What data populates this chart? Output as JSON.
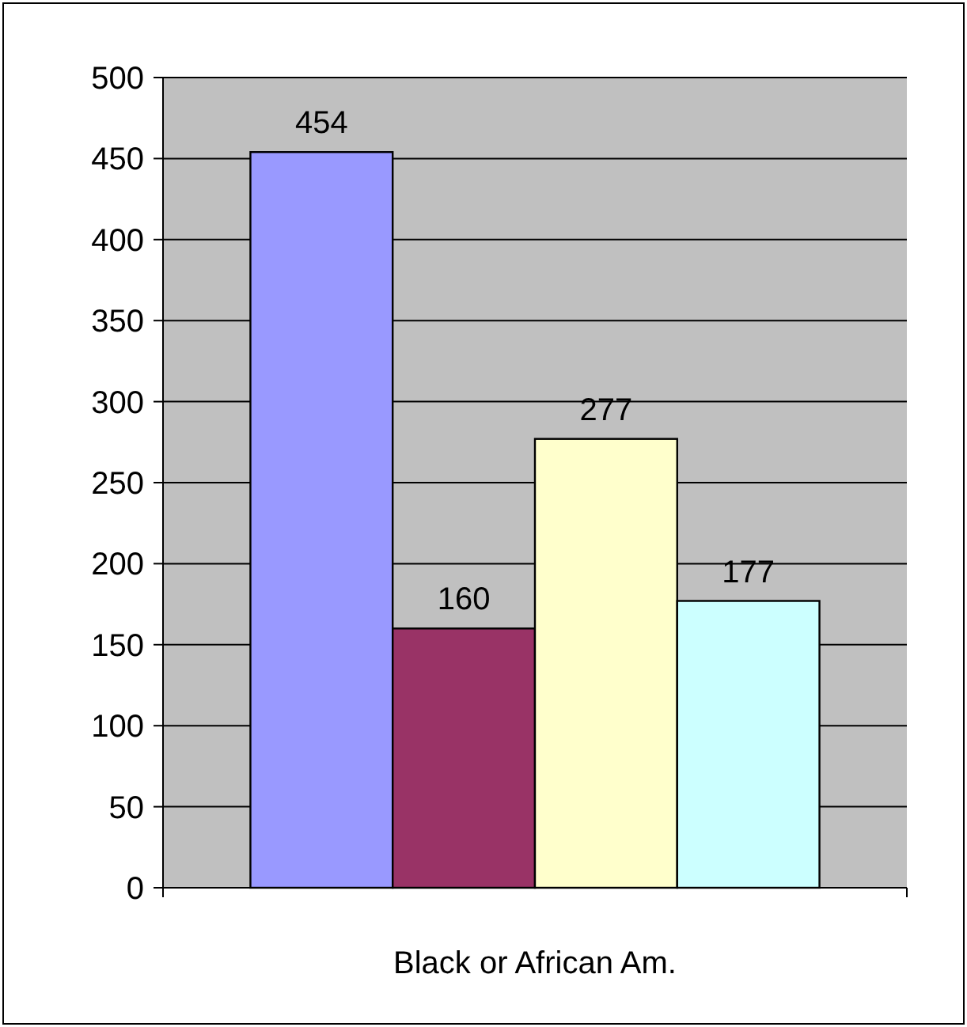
{
  "chart_data": {
    "type": "bar",
    "categories": [
      "Black or African Am."
    ],
    "series": [
      {
        "color": "#9999ff",
        "values": [
          454
        ]
      },
      {
        "color": "#993366",
        "values": [
          160
        ]
      },
      {
        "color": "#ffffcc",
        "values": [
          277
        ]
      },
      {
        "color": "#ccffff",
        "values": [
          177
        ]
      }
    ],
    "ylim": [
      0,
      500
    ],
    "yticks": [
      0,
      50,
      100,
      150,
      200,
      250,
      300,
      350,
      400,
      450,
      500
    ],
    "grid": "y",
    "data_labels": true
  }
}
